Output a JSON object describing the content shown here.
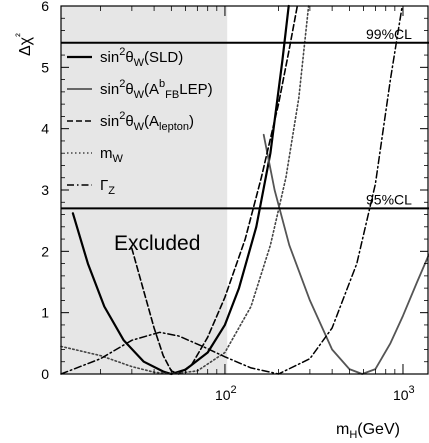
{
  "chart_data": {
    "type": "line",
    "xlabel": "m_H(GeV)",
    "ylabel": "Δχ²",
    "x_scale": "log",
    "xlim": [
      12,
      1400
    ],
    "ylim": [
      0,
      6
    ],
    "x_ticks": [
      {
        "value": 100,
        "label": "10",
        "exp": "2"
      },
      {
        "value": 1000,
        "label": "10",
        "exp": "3"
      }
    ],
    "y_ticks": [
      0,
      1,
      2,
      3,
      4,
      5,
      6
    ],
    "excluded_region": {
      "x_max": 103,
      "label": "Excluded",
      "color": "#e6e6e6"
    },
    "reference_lines": [
      {
        "y": 5.4,
        "label": "99%CL"
      },
      {
        "y": 2.7,
        "label": "95%CL"
      }
    ],
    "legend": [
      {
        "pre": "sin",
        "sup": "2",
        "theta": "θ",
        "sub1": "W",
        "paren": "(SLD)"
      },
      {
        "pre": "sin",
        "sup": "2",
        "theta": "θ",
        "sub1": "W",
        "paren_open": "(A",
        "sub2": "FB",
        "sup2": "b",
        "paren_close": "LEP)"
      },
      {
        "pre": "sin",
        "sup": "2",
        "theta": "θ",
        "sub1": "W",
        "paren_open": "(A",
        "sub2": "lepton",
        "paren_close": ")"
      },
      {
        "pre": "m",
        "sub1": "W"
      },
      {
        "pre": "Γ",
        "sub1": "Z"
      }
    ],
    "series": [
      {
        "style": "solid",
        "color": "#000000",
        "width": 2.2,
        "points": [
          [
            14,
            2.62
          ],
          [
            17,
            1.8
          ],
          [
            21,
            1.1
          ],
          [
            27,
            0.55
          ],
          [
            35,
            0.2
          ],
          [
            45,
            0.04
          ],
          [
            50,
            0.0
          ],
          [
            60,
            0.07
          ],
          [
            80,
            0.35
          ],
          [
            100,
            0.8
          ],
          [
            120,
            1.4
          ],
          [
            150,
            2.4
          ],
          [
            180,
            3.6
          ],
          [
            210,
            5.1
          ],
          [
            228,
            6.0
          ]
        ]
      },
      {
        "style": "solid",
        "color": "#555555",
        "width": 1.8,
        "points": [
          [
            165,
            3.9
          ],
          [
            190,
            3.0
          ],
          [
            230,
            2.1
          ],
          [
            300,
            1.2
          ],
          [
            400,
            0.4
          ],
          [
            500,
            0.08
          ],
          [
            590,
            0.0
          ],
          [
            700,
            0.08
          ],
          [
            850,
            0.5
          ],
          [
            1000,
            0.95
          ],
          [
            1200,
            1.5
          ],
          [
            1400,
            1.95
          ]
        ]
      },
      {
        "style": "dashed",
        "color": "#000000",
        "width": 1.6,
        "points": [
          [
            30,
            2.05
          ],
          [
            35,
            1.35
          ],
          [
            40,
            0.75
          ],
          [
            45,
            0.3
          ],
          [
            50,
            0.05
          ],
          [
            55,
            0.0
          ],
          [
            65,
            0.15
          ],
          [
            80,
            0.6
          ],
          [
            100,
            1.25
          ],
          [
            130,
            2.2
          ],
          [
            160,
            3.2
          ],
          [
            200,
            4.4
          ],
          [
            230,
            5.3
          ],
          [
            255,
            6.0
          ]
        ]
      },
      {
        "style": "dotted",
        "color": "#444444",
        "width": 1.6,
        "points": [
          [
            12,
            0.45
          ],
          [
            20,
            0.3
          ],
          [
            30,
            0.12
          ],
          [
            40,
            0.03
          ],
          [
            50,
            0.0
          ],
          [
            70,
            0.05
          ],
          [
            100,
            0.35
          ],
          [
            140,
            1.1
          ],
          [
            180,
            2.1
          ],
          [
            220,
            3.2
          ],
          [
            260,
            4.5
          ],
          [
            295,
            6.0
          ]
        ]
      },
      {
        "style": "dashdot",
        "color": "#000000",
        "width": 1.5,
        "points": [
          [
            12,
            0.0
          ],
          [
            20,
            0.25
          ],
          [
            30,
            0.55
          ],
          [
            43,
            0.68
          ],
          [
            55,
            0.62
          ],
          [
            75,
            0.45
          ],
          [
            100,
            0.28
          ],
          [
            140,
            0.1
          ],
          [
            200,
            0.0
          ],
          [
            300,
            0.25
          ],
          [
            400,
            0.75
          ],
          [
            550,
            1.8
          ],
          [
            700,
            3.1
          ],
          [
            850,
            4.8
          ],
          [
            990,
            6.0
          ]
        ]
      }
    ]
  }
}
